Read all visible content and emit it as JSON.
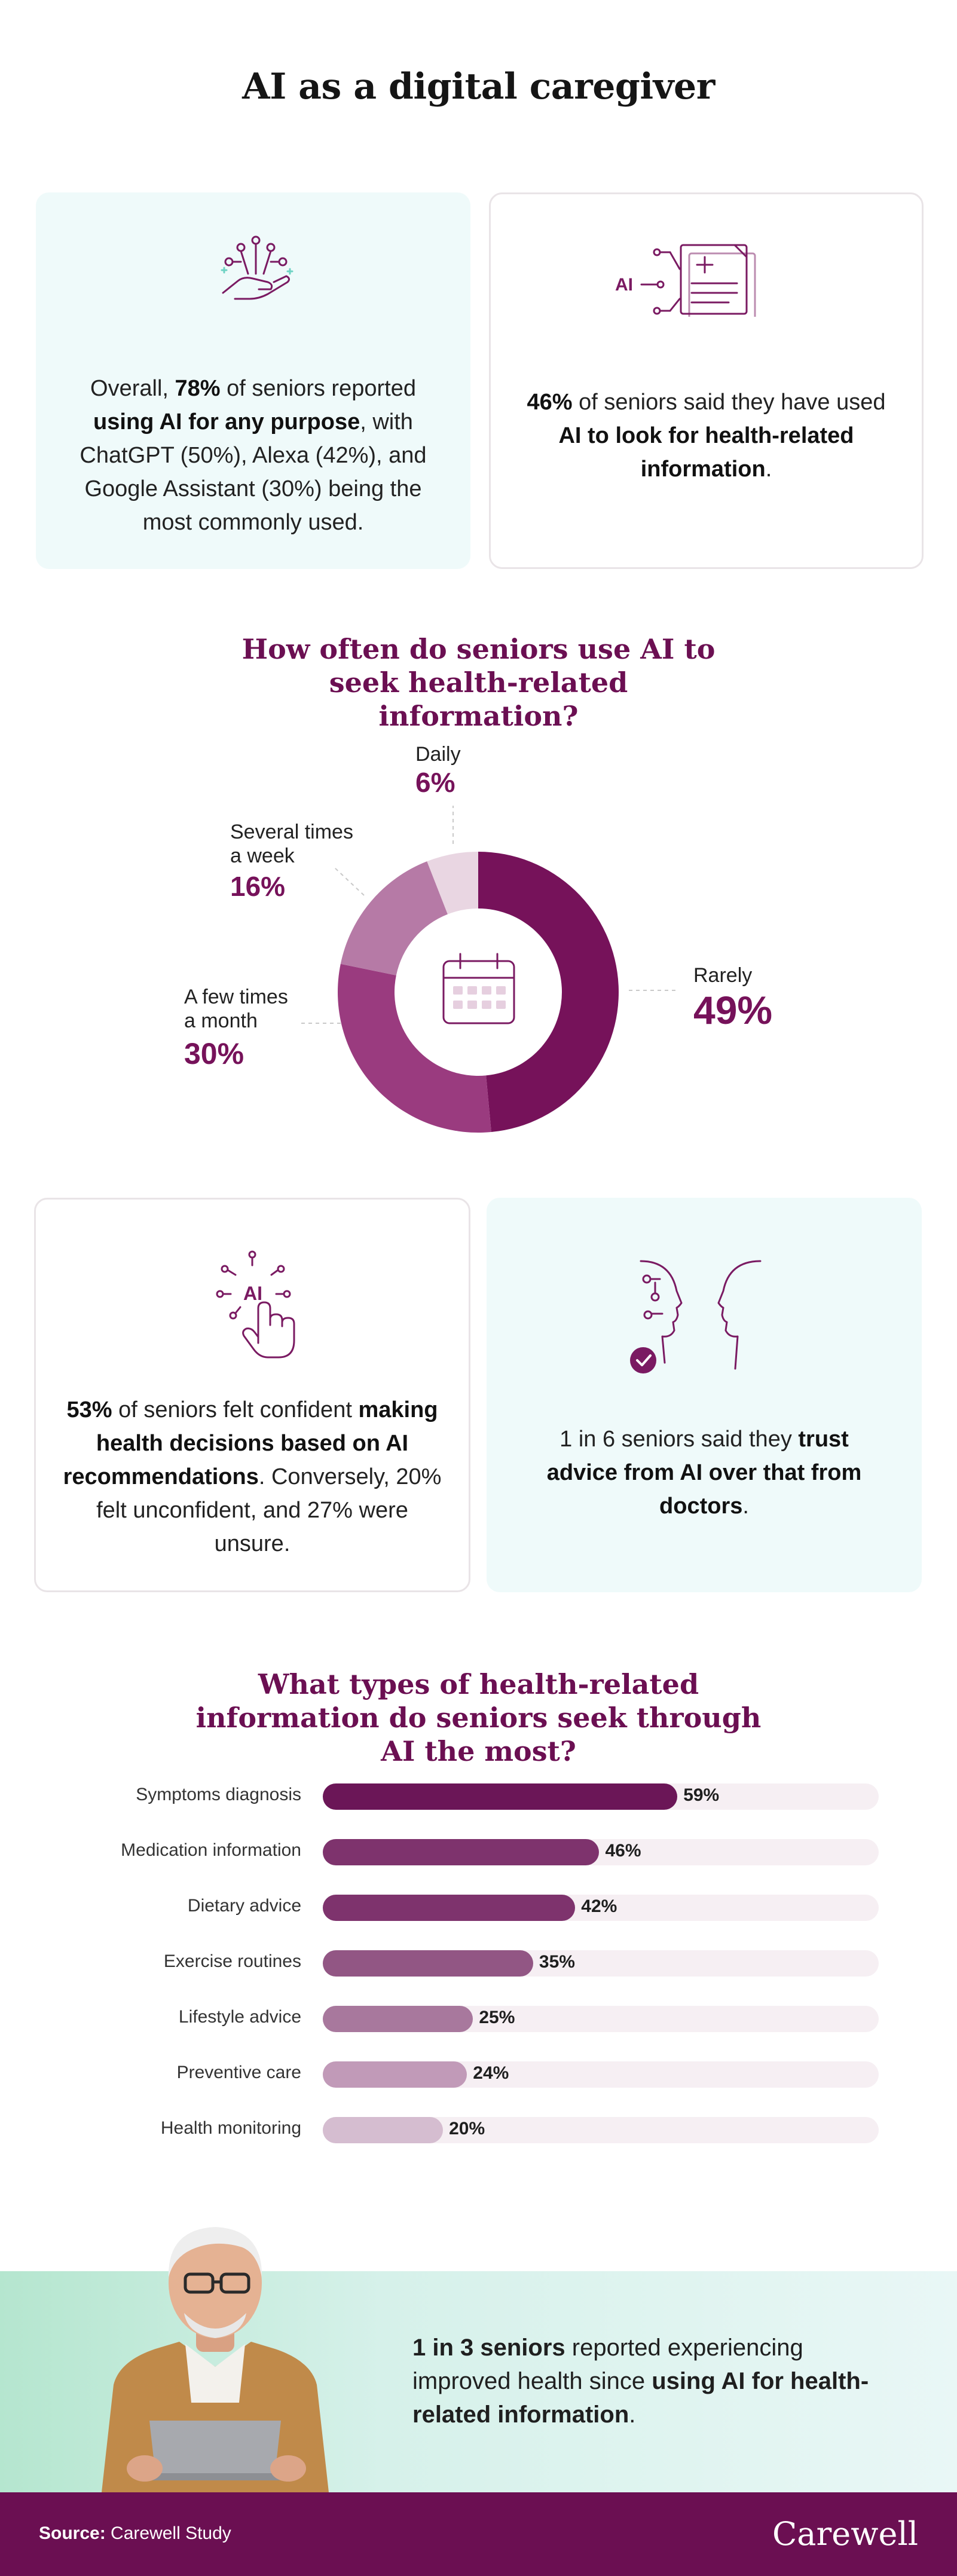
{
  "title": "AI as a digital caregiver",
  "cards_top": {
    "left": {
      "icon": "hand-network-icon",
      "t1": "Overall, ",
      "b1": "78%",
      "t2": " of seniors reported ",
      "b2": "using AI for any purpose",
      "t3": ", with ChatGPT (50%), Alexa (42%), and Google Assistant (30%) being the most commonly used."
    },
    "right": {
      "icon": "ai-document-icon",
      "icon_label": "AI",
      "b1": "46%",
      "t1": " of seniors said they have used ",
      "b2": "AI to look for health-related information",
      "t2": "."
    }
  },
  "donut": {
    "title": "How often do seniors use AI to seek health-related information?",
    "center_icon": "calendar-icon",
    "colors": {
      "rarely": "#76125a",
      "few_month": "#9a3b7f",
      "several_week": "#b67aa6",
      "daily": "#e9d6e2"
    }
  },
  "chart_data": {
    "type": "pie",
    "title": "How often do seniors use AI to seek health-related information?",
    "categories": [
      "Rarely",
      "A few times a month",
      "Several times a week",
      "Daily"
    ],
    "values": [
      49,
      30,
      16,
      6
    ],
    "labels": {
      "rarely": "Rarely",
      "few_month_l1": "A few times",
      "few_month_l2": "a month",
      "several_week_l1": "Several times",
      "several_week_l2": "a week",
      "daily": "Daily"
    },
    "pct": {
      "rarely": "49%",
      "few_month": "30%",
      "several_week": "16%",
      "daily": "6%"
    }
  },
  "cards_mid": {
    "left": {
      "icon": "ai-hand-tap-icon",
      "icon_label": "AI",
      "b1": "53%",
      "t1": " of seniors felt confident ",
      "b2": "making health decisions based on AI recommendations",
      "t2": ". Conversely, 20% felt unconfident, and 27% were unsure."
    },
    "right": {
      "icon": "ai-face-profile-icon",
      "t1": "1 in 6 seniors said they ",
      "b1": "trust advice from AI over that from doctors",
      "t2": "."
    }
  },
  "bars": {
    "title": "What types of health-related information do seniors seek through AI the most?",
    "max": 100,
    "items": [
      {
        "label": "Symptoms diagnosis",
        "value": 59,
        "display": "59%",
        "color": "#6b1657"
      },
      {
        "label": "Medication information",
        "value": 46,
        "display": "46%",
        "color": "#7e336d"
      },
      {
        "label": "Dietary advice",
        "value": 42,
        "display": "42%",
        "color": "#7e336d"
      },
      {
        "label": "Exercise routines",
        "value": 35,
        "display": "35%",
        "color": "#925684"
      },
      {
        "label": "Lifestyle advice",
        "value": 25,
        "display": "25%",
        "color": "#a8789d"
      },
      {
        "label": "Preventive care",
        "value": 24,
        "display": "24%",
        "color": "#c19ab8"
      },
      {
        "label": "Health monitoring",
        "value": 20,
        "display": "20%",
        "color": "#d5bdd0"
      }
    ]
  },
  "bottom": {
    "b1": "1 in 3 seniors",
    "t1": " reported experiencing improved health since ",
    "b2": "using AI for health-related information",
    "t2": "."
  },
  "footer": {
    "source_label": "Source:",
    "source_value": " Carewell Study",
    "brand": "Carewell"
  }
}
